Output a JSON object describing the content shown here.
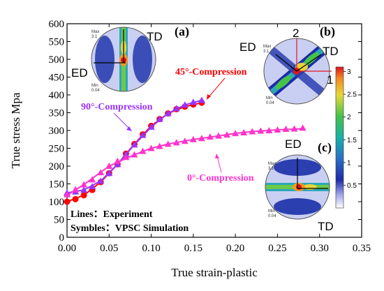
{
  "chart_data": {
    "type": "line",
    "xlabel": "True strain-plastic",
    "ylabel": "True stress Mpa",
    "xlim": [
      0,
      0.35
    ],
    "ylim": [
      0,
      600
    ],
    "xticks": [
      "0.00",
      "0.05",
      "0.10",
      "0.15",
      "0.20",
      "0.25",
      "0.30",
      "0.35"
    ],
    "yticks": [
      "0",
      "50",
      "100",
      "150",
      "200",
      "250",
      "300",
      "350",
      "400",
      "450",
      "500",
      "550",
      "600"
    ],
    "series": [
      {
        "name": "45°-Compression",
        "color": "#ff0000",
        "marker": "circle",
        "lines": {
          "x": [
            0,
            0.02,
            0.04,
            0.06,
            0.08,
            0.1,
            0.12,
            0.14,
            0.16
          ],
          "y": [
            100,
            118,
            155,
            205,
            262,
            313,
            348,
            367,
            378
          ]
        },
        "points": {
          "x": [
            0,
            0.01,
            0.02,
            0.03,
            0.04,
            0.05,
            0.06,
            0.07,
            0.08,
            0.09,
            0.1,
            0.11,
            0.12,
            0.13,
            0.14,
            0.15,
            0.16
          ],
          "y": [
            100,
            107,
            118,
            133,
            155,
            180,
            205,
            235,
            262,
            289,
            313,
            332,
            348,
            360,
            367,
            373,
            378
          ]
        }
      },
      {
        "name": "90°-Compression",
        "color": "#9933ff",
        "marker": "triangle",
        "lines": {
          "x": [
            0,
            0.02,
            0.04,
            0.06,
            0.08,
            0.1,
            0.12,
            0.14,
            0.16
          ],
          "y": [
            125,
            133,
            158,
            205,
            260,
            310,
            348,
            372,
            385
          ]
        },
        "points": {
          "x": [
            0,
            0.01,
            0.02,
            0.03,
            0.04,
            0.05,
            0.06,
            0.07,
            0.08,
            0.09,
            0.1,
            0.11,
            0.12,
            0.13,
            0.14,
            0.15,
            0.16
          ],
          "y": [
            125,
            128,
            133,
            143,
            158,
            180,
            205,
            233,
            260,
            287,
            310,
            332,
            348,
            362,
            372,
            380,
            385
          ]
        }
      },
      {
        "name": "0°-Compression",
        "color": "#ff33cc",
        "marker": "triangle",
        "lines": {
          "x": [
            0,
            0.02,
            0.05,
            0.08,
            0.1,
            0.12,
            0.15,
            0.18,
            0.2,
            0.22,
            0.25,
            0.28
          ],
          "y": [
            118,
            148,
            200,
            232,
            250,
            262,
            275,
            285,
            292,
            297,
            302,
            305
          ]
        },
        "points": {
          "x": [
            0,
            0.01,
            0.02,
            0.03,
            0.04,
            0.05,
            0.06,
            0.07,
            0.08,
            0.09,
            0.1,
            0.11,
            0.12,
            0.13,
            0.14,
            0.15,
            0.16,
            0.17,
            0.18,
            0.19,
            0.2,
            0.21,
            0.22,
            0.23,
            0.24,
            0.25,
            0.26,
            0.27,
            0.28
          ],
          "y": [
            120,
            134,
            148,
            162,
            182,
            200,
            214,
            225,
            232,
            242,
            250,
            256,
            262,
            266,
            270,
            275,
            278,
            282,
            285,
            288,
            292,
            294,
            297,
            299,
            300,
            302,
            304,
            305,
            307
          ]
        }
      }
    ],
    "annotations": {
      "legend_lines": "Lines：Experiment",
      "legend_symbles": "Symbles：VPSC Simulation"
    },
    "insets": [
      {
        "label": "(a)",
        "axes": [
          "TD",
          "ED"
        ],
        "max_label": "Max",
        "max_val": "3.1",
        "min_label": "Min",
        "min_val": "0.04"
      },
      {
        "label": "(b)",
        "axes": [
          "2",
          "ED",
          "TD",
          "1"
        ],
        "max_label": "Max",
        "max_val": "3.1",
        "min_label": "Min",
        "min_val": "0.04"
      },
      {
        "label": "(c)",
        "axes": [
          "ED",
          "TD"
        ],
        "max_label": "Max",
        "max_val": "3.1",
        "min_label": "Min",
        "min_val": "0.04"
      }
    ],
    "colorbar": {
      "ticks": [
        "3",
        "2.5",
        "2",
        "1.5",
        "1",
        "0.5"
      ],
      "range": [
        0,
        3.1
      ]
    }
  }
}
